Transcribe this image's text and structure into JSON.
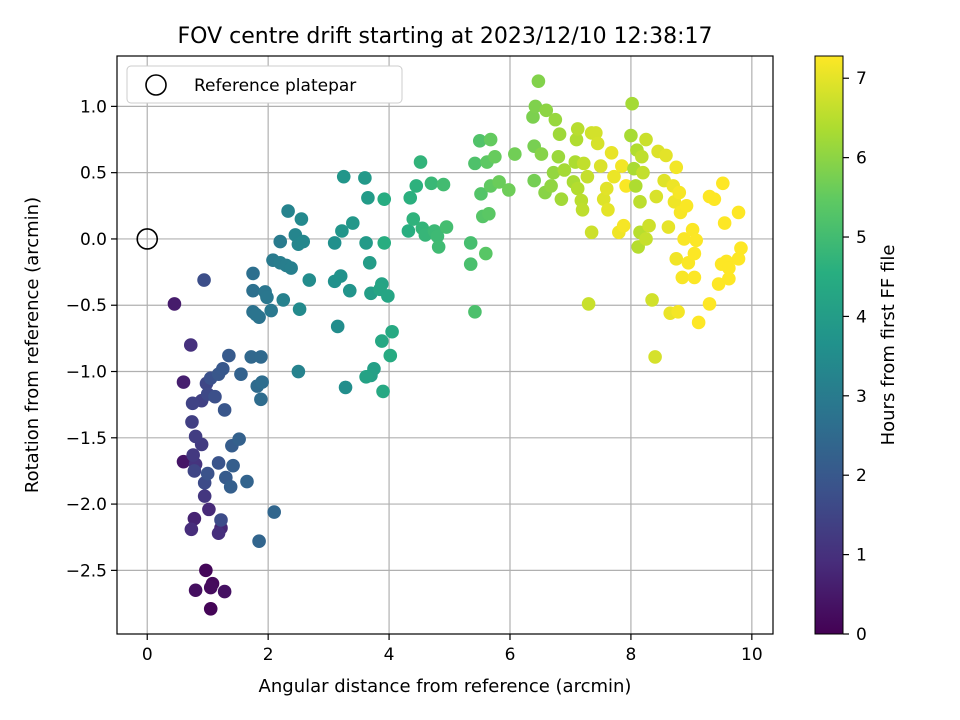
{
  "chart_data": {
    "type": "scatter",
    "title": "FOV centre drift starting at 2023/12/10 12:38:17",
    "xlabel": "Angular distance from reference (arcmin)",
    "ylabel": "Rotation from reference (arcmin)",
    "xlim": [
      -0.5,
      10.35
    ],
    "ylim": [
      -2.98,
      1.38
    ],
    "xticks": [
      0,
      2,
      4,
      6,
      8,
      10
    ],
    "xtick_labels": [
      "0",
      "2",
      "4",
      "6",
      "8",
      "10"
    ],
    "yticks": [
      -2.5,
      -2.0,
      -1.5,
      -1.0,
      -0.5,
      0.0,
      0.5,
      1.0
    ],
    "ytick_labels": [
      "−2.5",
      "−2.0",
      "−1.5",
      "−1.0",
      "−0.5",
      "0.0",
      "0.5",
      "1.0"
    ],
    "grid": true,
    "legend": {
      "position": "top-left",
      "entries": [
        "Reference platepar"
      ]
    },
    "reference_point": {
      "x": 0.0,
      "y": 0.0
    },
    "colorbar": {
      "label": "Hours from first FF file",
      "colormap": "viridis",
      "range": [
        0,
        7.28
      ],
      "ticks": [
        0,
        1,
        2,
        3,
        4,
        5,
        6,
        7
      ],
      "tick_labels": [
        "0",
        "1",
        "2",
        "3",
        "4",
        "5",
        "6",
        "7"
      ]
    },
    "points": [
      {
        "x": 1.05,
        "y": -2.79,
        "h": 0.08
      },
      {
        "x": 0.97,
        "y": -2.5,
        "h": 0.12
      },
      {
        "x": 1.08,
        "y": -2.6,
        "h": 0.18
      },
      {
        "x": 1.05,
        "y": -2.63,
        "h": 0.22
      },
      {
        "x": 0.8,
        "y": -2.65,
        "h": 0.28
      },
      {
        "x": 1.28,
        "y": -2.66,
        "h": 0.33
      },
      {
        "x": 0.6,
        "y": -1.68,
        "h": 0.42
      },
      {
        "x": 0.45,
        "y": -0.49,
        "h": 0.55
      },
      {
        "x": 0.6,
        "y": -1.08,
        "h": 0.62
      },
      {
        "x": 0.78,
        "y": -2.11,
        "h": 0.7
      },
      {
        "x": 1.22,
        "y": -2.18,
        "h": 0.78
      },
      {
        "x": 1.02,
        "y": -2.04,
        "h": 0.85
      },
      {
        "x": 0.73,
        "y": -2.19,
        "h": 0.9
      },
      {
        "x": 1.18,
        "y": -2.22,
        "h": 0.96
      },
      {
        "x": 0.72,
        "y": -0.8,
        "h": 1.02
      },
      {
        "x": 0.8,
        "y": -1.7,
        "h": 1.08
      },
      {
        "x": 0.95,
        "y": -1.94,
        "h": 1.15
      },
      {
        "x": 0.76,
        "y": -1.63,
        "h": 1.2
      },
      {
        "x": 0.9,
        "y": -1.55,
        "h": 1.26
      },
      {
        "x": 0.8,
        "y": -1.49,
        "h": 1.3
      },
      {
        "x": 0.74,
        "y": -1.38,
        "h": 1.36
      },
      {
        "x": 0.9,
        "y": -1.22,
        "h": 1.4
      },
      {
        "x": 0.75,
        "y": -1.24,
        "h": 1.46
      },
      {
        "x": 0.78,
        "y": -1.75,
        "h": 1.5
      },
      {
        "x": 0.98,
        "y": -1.09,
        "h": 1.55
      },
      {
        "x": 1.0,
        "y": -1.17,
        "h": 1.6
      },
      {
        "x": 0.95,
        "y": -1.84,
        "h": 1.64
      },
      {
        "x": 1.22,
        "y": -2.12,
        "h": 1.68
      },
      {
        "x": 0.94,
        "y": -0.31,
        "h": 1.72
      },
      {
        "x": 1.12,
        "y": -1.19,
        "h": 1.76
      },
      {
        "x": 1.05,
        "y": -1.05,
        "h": 1.8
      },
      {
        "x": 1.0,
        "y": -1.77,
        "h": 1.84
      },
      {
        "x": 1.18,
        "y": -1.69,
        "h": 1.88
      },
      {
        "x": 1.28,
        "y": -1.29,
        "h": 1.92
      },
      {
        "x": 1.18,
        "y": -1.02,
        "h": 1.96
      },
      {
        "x": 1.25,
        "y": -0.98,
        "h": 2.0
      },
      {
        "x": 1.35,
        "y": -0.88,
        "h": 2.04
      },
      {
        "x": 1.3,
        "y": -1.8,
        "h": 2.08
      },
      {
        "x": 1.4,
        "y": -1.56,
        "h": 2.12
      },
      {
        "x": 1.42,
        "y": -1.71,
        "h": 2.16
      },
      {
        "x": 1.38,
        "y": -1.87,
        "h": 2.2
      },
      {
        "x": 1.52,
        "y": -1.51,
        "h": 2.24
      },
      {
        "x": 1.55,
        "y": -1.02,
        "h": 2.28
      },
      {
        "x": 1.65,
        "y": -1.83,
        "h": 2.32
      },
      {
        "x": 1.85,
        "y": -2.28,
        "h": 2.36
      },
      {
        "x": 2.1,
        "y": -2.06,
        "h": 2.4
      },
      {
        "x": 1.72,
        "y": -0.89,
        "h": 2.44
      },
      {
        "x": 1.88,
        "y": -0.89,
        "h": 2.48
      },
      {
        "x": 1.82,
        "y": -1.11,
        "h": 2.52
      },
      {
        "x": 1.88,
        "y": -1.21,
        "h": 2.56
      },
      {
        "x": 1.9,
        "y": -1.08,
        "h": 2.6
      },
      {
        "x": 1.75,
        "y": -0.26,
        "h": 2.64
      },
      {
        "x": 1.75,
        "y": -0.39,
        "h": 2.68
      },
      {
        "x": 1.75,
        "y": -0.55,
        "h": 2.72
      },
      {
        "x": 1.85,
        "y": -0.59,
        "h": 2.76
      },
      {
        "x": 1.8,
        "y": -0.57,
        "h": 2.8
      },
      {
        "x": 1.95,
        "y": -0.4,
        "h": 2.84
      },
      {
        "x": 1.98,
        "y": -0.44,
        "h": 2.88
      },
      {
        "x": 2.05,
        "y": -0.54,
        "h": 2.92
      },
      {
        "x": 2.08,
        "y": -0.16,
        "h": 2.96
      },
      {
        "x": 2.2,
        "y": -0.02,
        "h": 3.0
      },
      {
        "x": 2.2,
        "y": -0.18,
        "h": 3.04
      },
      {
        "x": 2.3,
        "y": -0.2,
        "h": 3.08
      },
      {
        "x": 2.38,
        "y": -0.22,
        "h": 3.12
      },
      {
        "x": 2.25,
        "y": -0.46,
        "h": 3.16
      },
      {
        "x": 2.5,
        "y": -1.0,
        "h": 3.2
      },
      {
        "x": 2.33,
        "y": 0.21,
        "h": 3.24
      },
      {
        "x": 2.45,
        "y": 0.03,
        "h": 3.28
      },
      {
        "x": 2.5,
        "y": -0.04,
        "h": 3.32
      },
      {
        "x": 2.58,
        "y": -0.02,
        "h": 3.36
      },
      {
        "x": 2.55,
        "y": 0.15,
        "h": 3.4
      },
      {
        "x": 2.52,
        "y": -0.53,
        "h": 3.44
      },
      {
        "x": 2.68,
        "y": -0.31,
        "h": 3.48
      },
      {
        "x": 3.15,
        "y": -0.66,
        "h": 3.52
      },
      {
        "x": 3.28,
        "y": -1.12,
        "h": 3.56
      },
      {
        "x": 3.1,
        "y": -0.03,
        "h": 3.6
      },
      {
        "x": 3.1,
        "y": -0.32,
        "h": 3.64
      },
      {
        "x": 3.2,
        "y": -0.28,
        "h": 3.68
      },
      {
        "x": 3.35,
        "y": -0.39,
        "h": 3.72
      },
      {
        "x": 3.22,
        "y": 0.06,
        "h": 3.76
      },
      {
        "x": 3.25,
        "y": 0.47,
        "h": 3.8
      },
      {
        "x": 3.4,
        "y": 0.12,
        "h": 3.84
      },
      {
        "x": 3.6,
        "y": 0.46,
        "h": 3.88
      },
      {
        "x": 3.62,
        "y": -0.03,
        "h": 3.92
      },
      {
        "x": 3.65,
        "y": 0.31,
        "h": 3.96
      },
      {
        "x": 3.68,
        "y": -0.18,
        "h": 4.0
      },
      {
        "x": 3.7,
        "y": -0.41,
        "h": 4.04
      },
      {
        "x": 3.75,
        "y": -0.98,
        "h": 4.08
      },
      {
        "x": 3.7,
        "y": -1.03,
        "h": 4.12
      },
      {
        "x": 3.62,
        "y": -1.04,
        "h": 4.16
      },
      {
        "x": 3.88,
        "y": -0.34,
        "h": 4.2
      },
      {
        "x": 3.85,
        "y": -0.38,
        "h": 4.24
      },
      {
        "x": 3.98,
        "y": -0.43,
        "h": 4.28
      },
      {
        "x": 3.88,
        "y": -0.77,
        "h": 4.32
      },
      {
        "x": 3.9,
        "y": -1.15,
        "h": 4.36
      },
      {
        "x": 4.05,
        "y": -0.7,
        "h": 4.4
      },
      {
        "x": 4.02,
        "y": -0.88,
        "h": 4.44
      },
      {
        "x": 3.92,
        "y": 0.3,
        "h": 4.48
      },
      {
        "x": 3.92,
        "y": -0.03,
        "h": 4.52
      },
      {
        "x": 4.32,
        "y": 0.06,
        "h": 4.56
      },
      {
        "x": 4.35,
        "y": 0.31,
        "h": 4.6
      },
      {
        "x": 4.45,
        "y": 0.4,
        "h": 4.64
      },
      {
        "x": 4.4,
        "y": 0.15,
        "h": 4.68
      },
      {
        "x": 4.52,
        "y": 0.58,
        "h": 4.72
      },
      {
        "x": 4.55,
        "y": 0.08,
        "h": 4.76
      },
      {
        "x": 4.6,
        "y": 0.03,
        "h": 4.8
      },
      {
        "x": 4.7,
        "y": 0.42,
        "h": 4.84
      },
      {
        "x": 4.75,
        "y": 0.06,
        "h": 4.88
      },
      {
        "x": 4.8,
        "y": 0.02,
        "h": 4.92
      },
      {
        "x": 4.82,
        "y": -0.06,
        "h": 4.96
      },
      {
        "x": 4.9,
        "y": 0.41,
        "h": 5.0
      },
      {
        "x": 4.95,
        "y": 0.09,
        "h": 5.04
      },
      {
        "x": 5.35,
        "y": -0.03,
        "h": 5.08
      },
      {
        "x": 5.35,
        "y": -0.19,
        "h": 5.12
      },
      {
        "x": 5.42,
        "y": -0.55,
        "h": 5.16
      },
      {
        "x": 5.42,
        "y": 0.57,
        "h": 5.2
      },
      {
        "x": 5.5,
        "y": 0.74,
        "h": 5.24
      },
      {
        "x": 5.52,
        "y": 0.34,
        "h": 5.28
      },
      {
        "x": 5.55,
        "y": 0.17,
        "h": 5.32
      },
      {
        "x": 5.6,
        "y": -0.11,
        "h": 5.36
      },
      {
        "x": 5.65,
        "y": 0.19,
        "h": 5.4
      },
      {
        "x": 5.62,
        "y": 0.58,
        "h": 5.44
      },
      {
        "x": 5.68,
        "y": 0.4,
        "h": 5.48
      },
      {
        "x": 5.68,
        "y": 0.75,
        "h": 5.52
      },
      {
        "x": 5.75,
        "y": 0.62,
        "h": 5.56
      },
      {
        "x": 5.82,
        "y": 0.43,
        "h": 5.6
      },
      {
        "x": 5.98,
        "y": 0.37,
        "h": 5.64
      },
      {
        "x": 6.08,
        "y": 0.64,
        "h": 5.68
      },
      {
        "x": 6.4,
        "y": 0.44,
        "h": 5.72
      },
      {
        "x": 6.4,
        "y": 0.7,
        "h": 5.76
      },
      {
        "x": 6.38,
        "y": 0.92,
        "h": 5.8
      },
      {
        "x": 6.42,
        "y": 1.0,
        "h": 5.84
      },
      {
        "x": 6.47,
        "y": 1.19,
        "h": 5.88
      },
      {
        "x": 6.52,
        "y": 0.64,
        "h": 5.92
      },
      {
        "x": 6.58,
        "y": 0.35,
        "h": 5.96
      },
      {
        "x": 6.6,
        "y": 0.97,
        "h": 6.0
      },
      {
        "x": 6.68,
        "y": 0.4,
        "h": 6.04
      },
      {
        "x": 6.72,
        "y": 0.5,
        "h": 6.08
      },
      {
        "x": 6.75,
        "y": 0.9,
        "h": 6.12
      },
      {
        "x": 6.8,
        "y": 0.62,
        "h": 6.16
      },
      {
        "x": 6.82,
        "y": 0.79,
        "h": 6.2
      },
      {
        "x": 6.85,
        "y": 0.3,
        "h": 6.24
      },
      {
        "x": 6.9,
        "y": 0.52,
        "h": 6.28
      },
      {
        "x": 7.05,
        "y": 0.43,
        "h": 6.32
      },
      {
        "x": 7.08,
        "y": 0.58,
        "h": 6.36
      },
      {
        "x": 7.1,
        "y": 0.75,
        "h": 6.4
      },
      {
        "x": 7.12,
        "y": 0.38,
        "h": 6.44
      },
      {
        "x": 7.12,
        "y": 0.83,
        "h": 6.48
      },
      {
        "x": 7.18,
        "y": 0.29,
        "h": 6.52
      },
      {
        "x": 7.2,
        "y": 0.22,
        "h": 6.56
      },
      {
        "x": 7.22,
        "y": 0.57,
        "h": 6.6
      },
      {
        "x": 7.28,
        "y": 0.47,
        "h": 6.64
      },
      {
        "x": 7.3,
        "y": -0.49,
        "h": 6.68
      },
      {
        "x": 7.35,
        "y": 0.05,
        "h": 6.72
      },
      {
        "x": 7.35,
        "y": 0.8,
        "h": 6.76
      },
      {
        "x": 7.42,
        "y": 0.8,
        "h": 6.8
      },
      {
        "x": 7.45,
        "y": 0.72,
        "h": 6.84
      },
      {
        "x": 7.5,
        "y": 0.55,
        "h": 6.88
      },
      {
        "x": 7.55,
        "y": 0.3,
        "h": 6.92
      },
      {
        "x": 7.6,
        "y": 0.38,
        "h": 6.96
      },
      {
        "x": 7.62,
        "y": 0.22,
        "h": 7.0
      },
      {
        "x": 7.68,
        "y": 0.65,
        "h": 7.04
      },
      {
        "x": 7.72,
        "y": 0.47,
        "h": 7.08
      },
      {
        "x": 7.8,
        "y": 0.05,
        "h": 7.12
      },
      {
        "x": 7.85,
        "y": 0.55,
        "h": 7.16
      },
      {
        "x": 7.88,
        "y": 0.1,
        "h": 7.2
      },
      {
        "x": 7.92,
        "y": 0.4,
        "h": 7.24
      },
      {
        "x": 8.0,
        "y": 0.78,
        "h": 6.3
      },
      {
        "x": 8.02,
        "y": 1.02,
        "h": 6.28
      },
      {
        "x": 8.05,
        "y": 0.53,
        "h": 6.34
      },
      {
        "x": 8.08,
        "y": 0.4,
        "h": 6.38
      },
      {
        "x": 8.1,
        "y": 0.67,
        "h": 6.42
      },
      {
        "x": 8.12,
        "y": -0.06,
        "h": 6.46
      },
      {
        "x": 8.15,
        "y": 0.05,
        "h": 6.5
      },
      {
        "x": 8.15,
        "y": 0.28,
        "h": 6.54
      },
      {
        "x": 8.18,
        "y": 0.62,
        "h": 6.58
      },
      {
        "x": 8.2,
        "y": 0.5,
        "h": 6.62
      },
      {
        "x": 8.25,
        "y": 0.0,
        "h": 6.66
      },
      {
        "x": 8.25,
        "y": 0.75,
        "h": 6.7
      },
      {
        "x": 8.3,
        "y": 0.1,
        "h": 6.74
      },
      {
        "x": 8.35,
        "y": -0.46,
        "h": 6.78
      },
      {
        "x": 8.4,
        "y": -0.89,
        "h": 6.82
      },
      {
        "x": 8.42,
        "y": 0.32,
        "h": 6.86
      },
      {
        "x": 8.45,
        "y": 0.66,
        "h": 6.9
      },
      {
        "x": 8.55,
        "y": 0.44,
        "h": 6.94
      },
      {
        "x": 8.58,
        "y": 0.63,
        "h": 6.98
      },
      {
        "x": 8.62,
        "y": 0.09,
        "h": 7.02
      },
      {
        "x": 8.65,
        "y": -0.56,
        "h": 7.06
      },
      {
        "x": 8.7,
        "y": 0.4,
        "h": 7.1
      },
      {
        "x": 8.72,
        "y": 0.28,
        "h": 7.12
      },
      {
        "x": 8.75,
        "y": -0.15,
        "h": 7.14
      },
      {
        "x": 8.75,
        "y": 0.54,
        "h": 7.16
      },
      {
        "x": 8.78,
        "y": -0.55,
        "h": 7.18
      },
      {
        "x": 8.8,
        "y": 0.35,
        "h": 7.2
      },
      {
        "x": 8.82,
        "y": 0.2,
        "h": 7.21
      },
      {
        "x": 8.85,
        "y": -0.29,
        "h": 7.22
      },
      {
        "x": 8.88,
        "y": 0.0,
        "h": 7.23
      },
      {
        "x": 8.92,
        "y": 0.25,
        "h": 7.24
      },
      {
        "x": 8.95,
        "y": -0.18,
        "h": 7.25
      },
      {
        "x": 9.02,
        "y": 0.07,
        "h": 7.26
      },
      {
        "x": 9.05,
        "y": -0.11,
        "h": 7.27
      },
      {
        "x": 9.05,
        "y": -0.29,
        "h": 7.27
      },
      {
        "x": 9.08,
        "y": -0.01,
        "h": 7.27
      },
      {
        "x": 9.12,
        "y": -0.63,
        "h": 7.28
      },
      {
        "x": 9.3,
        "y": -0.49,
        "h": 7.28
      },
      {
        "x": 9.3,
        "y": 0.32,
        "h": 7.28
      },
      {
        "x": 9.38,
        "y": 0.3,
        "h": 7.28
      },
      {
        "x": 9.45,
        "y": -0.34,
        "h": 7.28
      },
      {
        "x": 9.5,
        "y": -0.19,
        "h": 7.28
      },
      {
        "x": 9.52,
        "y": 0.42,
        "h": 7.28
      },
      {
        "x": 9.55,
        "y": 0.12,
        "h": 7.28
      },
      {
        "x": 9.58,
        "y": -0.17,
        "h": 7.28
      },
      {
        "x": 9.62,
        "y": -0.22,
        "h": 7.28
      },
      {
        "x": 9.62,
        "y": -0.3,
        "h": 7.28
      },
      {
        "x": 9.78,
        "y": 0.2,
        "h": 7.28
      },
      {
        "x": 9.78,
        "y": -0.15,
        "h": 7.28
      },
      {
        "x": 9.82,
        "y": -0.07,
        "h": 7.28
      }
    ]
  }
}
